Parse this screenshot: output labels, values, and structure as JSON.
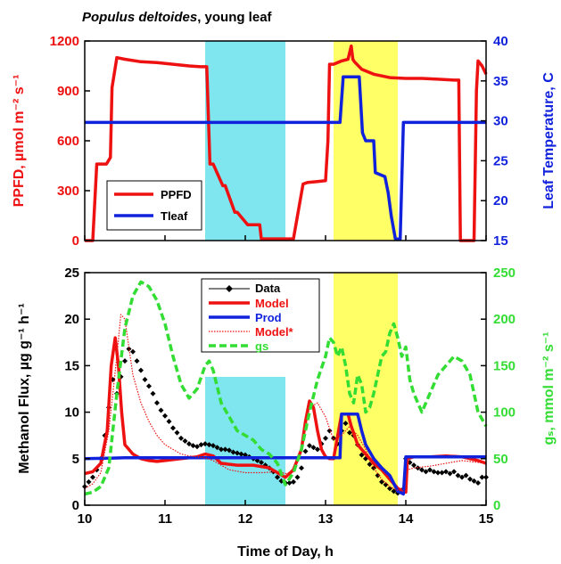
{
  "chart_data": [
    {
      "type": "line",
      "title": "",
      "title_italic": "Populus deltoides",
      "title_rest": ", young leaf",
      "xlim": [
        10,
        15
      ],
      "ylabel": "PPFD, µmol m⁻² s⁻¹",
      "ylim": [
        0,
        1200
      ],
      "yticks": [
        0,
        300,
        600,
        900,
        1200
      ],
      "y2label": "Leaf Temperature, C",
      "y2lim": [
        15,
        40
      ],
      "y2ticks": [
        15,
        20,
        25,
        30,
        35,
        40
      ],
      "shaded_regions": [
        {
          "x0": 11.5,
          "x1": 12.5,
          "color": "#7fe6f0"
        },
        {
          "x0": 13.1,
          "x1": 13.9,
          "color": "#ffff66"
        }
      ],
      "legend": {
        "position": "lower-left",
        "entries": [
          "PPFD",
          "Tleaf"
        ]
      },
      "series": [
        {
          "name": "PPFD",
          "axis": "left",
          "color": "#ee1111",
          "x": [
            10.0,
            10.08,
            10.1,
            10.15,
            10.2,
            10.25,
            10.27,
            10.32,
            10.34,
            10.4,
            10.5,
            10.7,
            10.9,
            11.1,
            11.3,
            11.44,
            11.48,
            11.52,
            11.56,
            11.6,
            11.72,
            11.75,
            11.87,
            11.9,
            12.03,
            12.06,
            12.18,
            12.2,
            12.42,
            12.45,
            12.6,
            12.72,
            12.78,
            12.9,
            13.0,
            13.03,
            13.05,
            13.1,
            13.2,
            13.28,
            13.32,
            13.34,
            13.36,
            13.45,
            13.6,
            13.8,
            14.0,
            14.2,
            14.4,
            14.6,
            14.66,
            14.68,
            14.7,
            14.85,
            14.88,
            14.9,
            14.95,
            15.0
          ],
          "y": [
            0,
            0,
            0,
            460,
            460,
            460,
            460,
            500,
            920,
            1100,
            1090,
            1075,
            1070,
            1060,
            1050,
            1045,
            1045,
            1045,
            460,
            460,
            330,
            330,
            170,
            170,
            95,
            95,
            95,
            10,
            10,
            10,
            10,
            340,
            350,
            355,
            360,
            600,
            1060,
            1060,
            1080,
            1090,
            1170,
            1090,
            1075,
            1030,
            1000,
            980,
            975,
            975,
            970,
            965,
            965,
            0,
            0,
            0,
            900,
            1080,
            1050,
            1000
          ]
        },
        {
          "name": "Tleaf",
          "axis": "right",
          "color": "#1122dd",
          "x": [
            10.0,
            10.5,
            11.0,
            11.5,
            12.0,
            12.5,
            13.0,
            13.18,
            13.22,
            13.3,
            13.42,
            13.46,
            13.5,
            13.6,
            13.62,
            13.74,
            13.78,
            13.82,
            13.87,
            13.93,
            13.97,
            14.0,
            14.5,
            15.0
          ],
          "y": [
            29.8,
            29.8,
            29.8,
            29.8,
            29.8,
            29.8,
            29.8,
            29.8,
            35.5,
            35.5,
            35.5,
            28.5,
            27.5,
            27.5,
            23.5,
            23.0,
            21.0,
            18.0,
            15.2,
            15.2,
            29.8,
            29.8,
            29.8,
            29.8
          ]
        }
      ]
    },
    {
      "type": "line",
      "xlabel": "Time of Day, h",
      "xlim": [
        10,
        15
      ],
      "xticks": [
        10,
        11,
        12,
        13,
        14,
        15
      ],
      "ylabel": "Methanol Flux, µg g⁻¹ h⁻¹",
      "ylim": [
        0,
        25
      ],
      "yticks": [
        0,
        5,
        10,
        15,
        20,
        25
      ],
      "y2label": "gₛ, mmol m⁻² s⁻¹",
      "y2lim": [
        0,
        250
      ],
      "y2ticks": [
        0,
        50,
        100,
        150,
        200,
        250
      ],
      "shaded_regions": [
        {
          "x0": 11.5,
          "x1": 12.5,
          "ymax": 13.8,
          "color": "#7fe6f0"
        },
        {
          "x0": 13.1,
          "x1": 13.9,
          "color": "#ffff66"
        }
      ],
      "legend": {
        "position": "top-center",
        "entries": [
          "Data",
          "Model",
          "Prod",
          "Model*",
          "gs"
        ]
      },
      "series": [
        {
          "name": "Data",
          "axis": "left",
          "color": "#000000",
          "style": "points",
          "x": [
            10.0,
            10.05,
            10.1,
            10.15,
            10.2,
            10.25,
            10.3,
            10.35,
            10.4,
            10.45,
            10.5,
            10.55,
            10.6,
            10.65,
            10.7,
            10.75,
            10.8,
            10.85,
            10.9,
            10.95,
            11.0,
            11.05,
            11.1,
            11.15,
            11.2,
            11.25,
            11.3,
            11.35,
            11.4,
            11.45,
            11.5,
            11.55,
            11.6,
            11.65,
            11.7,
            11.75,
            11.8,
            11.85,
            11.9,
            11.95,
            12.0,
            12.05,
            12.1,
            12.15,
            12.2,
            12.25,
            12.3,
            12.35,
            12.4,
            12.45,
            12.5,
            12.55,
            12.6,
            12.65,
            12.7,
            12.75,
            12.8,
            12.85,
            12.9,
            12.95,
            13.0,
            13.05,
            13.1,
            13.15,
            13.2,
            13.25,
            13.3,
            13.35,
            13.4,
            13.45,
            13.5,
            13.55,
            13.6,
            13.65,
            13.7,
            13.75,
            13.8,
            13.85,
            13.9,
            13.95,
            14.0,
            14.05,
            14.1,
            14.15,
            14.2,
            14.25,
            14.3,
            14.35,
            14.4,
            14.45,
            14.5,
            14.55,
            14.6,
            14.65,
            14.7,
            14.75,
            14.8,
            14.85,
            14.9,
            14.95,
            15.0
          ],
          "y": [
            2.0,
            2.5,
            3.0,
            3.8,
            5.0,
            7.5,
            10.5,
            13.5,
            12.0,
            13.8,
            15.5,
            16.8,
            16.5,
            15.5,
            14.5,
            13.5,
            12.8,
            12.0,
            11.0,
            10.2,
            9.6,
            9.0,
            8.3,
            7.8,
            7.2,
            6.9,
            6.6,
            6.4,
            6.3,
            6.5,
            6.6,
            6.5,
            6.4,
            6.2,
            6.0,
            6.0,
            5.9,
            5.7,
            5.6,
            5.5,
            5.4,
            5.2,
            5.0,
            4.8,
            4.6,
            4.3,
            4.0,
            3.6,
            3.0,
            2.6,
            2.4,
            2.4,
            2.5,
            3.0,
            4.0,
            5.8,
            6.4,
            6.2,
            6.0,
            6.6,
            7.2,
            8.0,
            7.2,
            6.6,
            8.0,
            8.8,
            7.8,
            7.5,
            6.5,
            5.4,
            5.0,
            4.4,
            4.0,
            3.2,
            2.5,
            2.2,
            1.8,
            1.5,
            1.3,
            1.6,
            5.0,
            4.6,
            4.3,
            4.0,
            3.8,
            3.6,
            3.8,
            3.6,
            3.5,
            3.5,
            3.6,
            3.4,
            3.6,
            3.2,
            3.0,
            3.2,
            2.8,
            2.6,
            2.4,
            3.0,
            3.0
          ]
        },
        {
          "name": "Model",
          "axis": "left",
          "color": "#ee1111",
          "style": "solid",
          "x": [
            10.0,
            10.1,
            10.2,
            10.28,
            10.33,
            10.38,
            10.42,
            10.46,
            10.5,
            10.6,
            10.7,
            10.8,
            10.9,
            11.0,
            11.2,
            11.4,
            11.5,
            11.6,
            11.7,
            11.9,
            12.1,
            12.3,
            12.5,
            12.6,
            12.7,
            12.75,
            12.8,
            12.85,
            12.9,
            12.95,
            13.0,
            13.05,
            13.1,
            13.2,
            13.28,
            13.32,
            13.4,
            13.5,
            13.6,
            13.7,
            13.8,
            13.9,
            14.0,
            14.02,
            14.1,
            14.3,
            14.5,
            14.7,
            14.9,
            15.0
          ],
          "y": [
            3.4,
            3.6,
            4.5,
            8.0,
            15.0,
            18.0,
            15.0,
            10.0,
            6.5,
            5.5,
            5.0,
            4.8,
            4.7,
            4.8,
            5.0,
            5.2,
            5.5,
            5.3,
            4.5,
            4.3,
            4.3,
            4.0,
            3.0,
            3.8,
            6.0,
            9.0,
            11.2,
            10.5,
            8.0,
            6.0,
            5.2,
            5.0,
            5.0,
            9.8,
            9.8,
            8.5,
            6.5,
            5.5,
            4.5,
            3.8,
            2.8,
            1.8,
            1.4,
            5.0,
            5.2,
            5.2,
            5.3,
            5.2,
            4.8,
            4.5
          ]
        },
        {
          "name": "Prod",
          "axis": "left",
          "color": "#1122dd",
          "style": "solid",
          "x": [
            10.0,
            10.5,
            11.0,
            11.5,
            12.0,
            12.5,
            13.0,
            13.18,
            13.2,
            13.4,
            13.45,
            13.5,
            13.6,
            13.7,
            13.8,
            13.9,
            13.97,
            14.0,
            14.5,
            15.0
          ],
          "y": [
            5.0,
            5.1,
            5.1,
            5.1,
            5.1,
            5.1,
            5.1,
            5.1,
            9.8,
            9.8,
            8.0,
            6.5,
            5.0,
            4.0,
            3.2,
            1.5,
            1.2,
            5.2,
            5.2,
            5.2
          ]
        },
        {
          "name": "Model*",
          "axis": "left",
          "color": "#ee1111",
          "style": "dotted",
          "x": [
            10.0,
            10.1,
            10.2,
            10.3,
            10.4,
            10.45,
            10.5,
            10.55,
            10.6,
            10.7,
            10.8,
            10.9,
            11.0,
            11.1,
            11.2,
            11.3,
            11.4,
            11.5,
            11.6,
            11.7,
            11.8,
            12.0,
            12.2,
            12.4,
            12.5,
            12.6,
            12.7,
            12.8,
            12.9,
            13.0,
            13.1,
            13.2,
            13.3,
            13.4,
            13.5,
            13.6,
            13.7,
            13.8,
            13.9,
            14.0,
            14.02,
            14.1,
            14.3,
            14.5,
            14.7,
            14.9,
            15.0
          ],
          "y": [
            1.8,
            2.3,
            3.5,
            8.0,
            16.0,
            20.5,
            20.0,
            17.0,
            14.0,
            11.0,
            9.0,
            7.5,
            6.5,
            6.0,
            5.5,
            5.3,
            5.2,
            5.1,
            4.8,
            4.3,
            3.8,
            3.5,
            3.5,
            3.6,
            3.4,
            3.6,
            6.0,
            10.5,
            11.0,
            9.5,
            7.0,
            7.5,
            8.5,
            7.5,
            6.0,
            4.0,
            2.8,
            2.0,
            1.6,
            1.5,
            3.8,
            4.0,
            4.2,
            4.5,
            4.8,
            4.6,
            4.5
          ]
        },
        {
          "name": "gs",
          "axis": "right",
          "color": "#33dd33",
          "style": "dashed",
          "x": [
            10.0,
            10.1,
            10.2,
            10.3,
            10.4,
            10.5,
            10.6,
            10.7,
            10.8,
            10.9,
            11.0,
            11.1,
            11.2,
            11.3,
            11.4,
            11.5,
            11.55,
            11.6,
            11.7,
            11.8,
            11.9,
            12.0,
            12.1,
            12.2,
            12.3,
            12.4,
            12.5,
            12.6,
            12.7,
            12.8,
            12.9,
            13.0,
            13.05,
            13.1,
            13.15,
            13.2,
            13.25,
            13.3,
            13.35,
            13.4,
            13.45,
            13.5,
            13.55,
            13.6,
            13.65,
            13.7,
            13.75,
            13.8,
            13.85,
            13.9,
            13.95,
            14.0,
            14.05,
            14.1,
            14.2,
            14.3,
            14.4,
            14.5,
            14.6,
            14.7,
            14.8,
            14.9,
            15.0
          ],
          "y": [
            12,
            14,
            20,
            40,
            120,
            190,
            225,
            240,
            235,
            220,
            195,
            160,
            130,
            115,
            125,
            150,
            155,
            145,
            110,
            95,
            80,
            75,
            70,
            60,
            55,
            45,
            22,
            35,
            60,
            100,
            135,
            160,
            180,
            175,
            160,
            170,
            150,
            120,
            110,
            140,
            130,
            100,
            105,
            120,
            140,
            160,
            165,
            185,
            195,
            180,
            160,
            170,
            135,
            120,
            100,
            120,
            140,
            150,
            160,
            155,
            140,
            100,
            85
          ]
        }
      ]
    }
  ]
}
